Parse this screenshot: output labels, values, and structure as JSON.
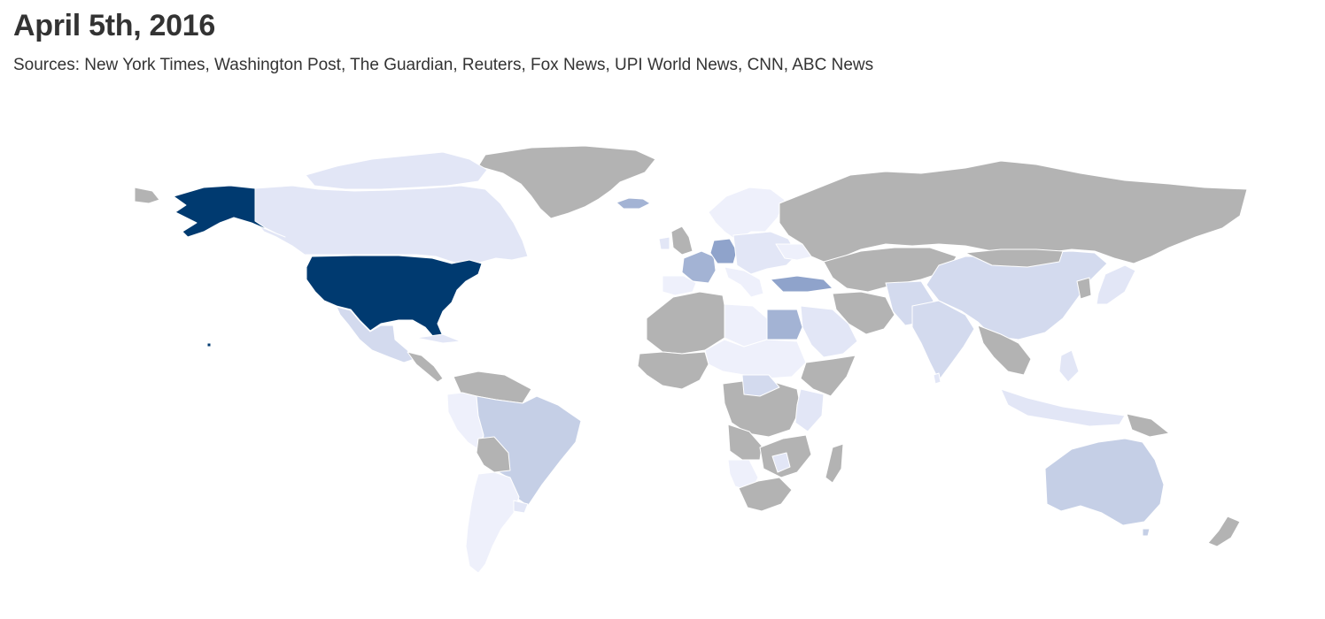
{
  "header": {
    "title": "April 5th, 2016",
    "subtitle": "Sources: New York Times, Washington Post, The Guardian, Reuters, Fox News, UPI World News, CNN, ABC News"
  },
  "map": {
    "type": "choropleth-world",
    "colors": {
      "no_data": "#b3b3b3",
      "level_1": "#eef0fb",
      "level_2": "#e2e6f6",
      "level_3": "#d3daee",
      "level_4": "#c5cfe6",
      "level_5": "#a3b3d4",
      "level_6": "#8fa3cb",
      "max": "#003a70"
    }
  }
}
